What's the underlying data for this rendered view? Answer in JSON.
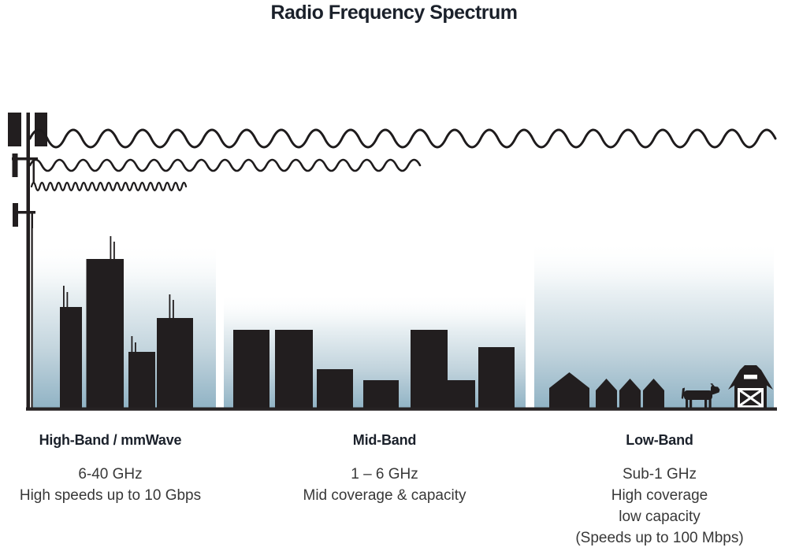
{
  "title": "Radio Frequency Spectrum",
  "tower": {
    "icon": "cell-tower-icon"
  },
  "waves": [
    {
      "icon": "low-band-wave-icon",
      "wavelength": "long",
      "reach": "farthest - reaches rural farm"
    },
    {
      "icon": "mid-band-wave-icon",
      "wavelength": "medium",
      "reach": "medium - reaches suburbs"
    },
    {
      "icon": "high-band-wave-icon",
      "wavelength": "short",
      "reach": "shortest - city only"
    }
  ],
  "scenes": [
    {
      "icon": "city-skyline-icon",
      "band": "high"
    },
    {
      "icon": "suburban-buildings-icon",
      "band": "mid"
    },
    {
      "icon": "farm-houses-icon",
      "band": "low"
    },
    {
      "icon": "cow-icon",
      "band": "low"
    },
    {
      "icon": "barn-icon",
      "band": "low"
    }
  ],
  "bands": [
    {
      "heading": "High-Band / mmWave",
      "lines": [
        "6-40 GHz",
        "High speeds up to 10 Gbps"
      ]
    },
    {
      "heading": "Mid-Band",
      "lines": [
        "1 – 6 GHz",
        "Mid coverage & capacity"
      ]
    },
    {
      "heading": "Low-Band",
      "lines": [
        "Sub-1 GHz",
        "High coverage",
        "low capacity",
        "(Speeds up to 100 Mbps)"
      ]
    }
  ],
  "colors": {
    "silhouette": "#221e1f",
    "wave_stroke": "#1e1b1c",
    "ground": "#262223",
    "sky_gradient_bottom": "#8fb2c4",
    "sky_gradient_mid": "#c2d4dd",
    "sky_gradient_light": "#e9f0f3",
    "heading_text": "#1b212b",
    "body_text": "#383838"
  }
}
